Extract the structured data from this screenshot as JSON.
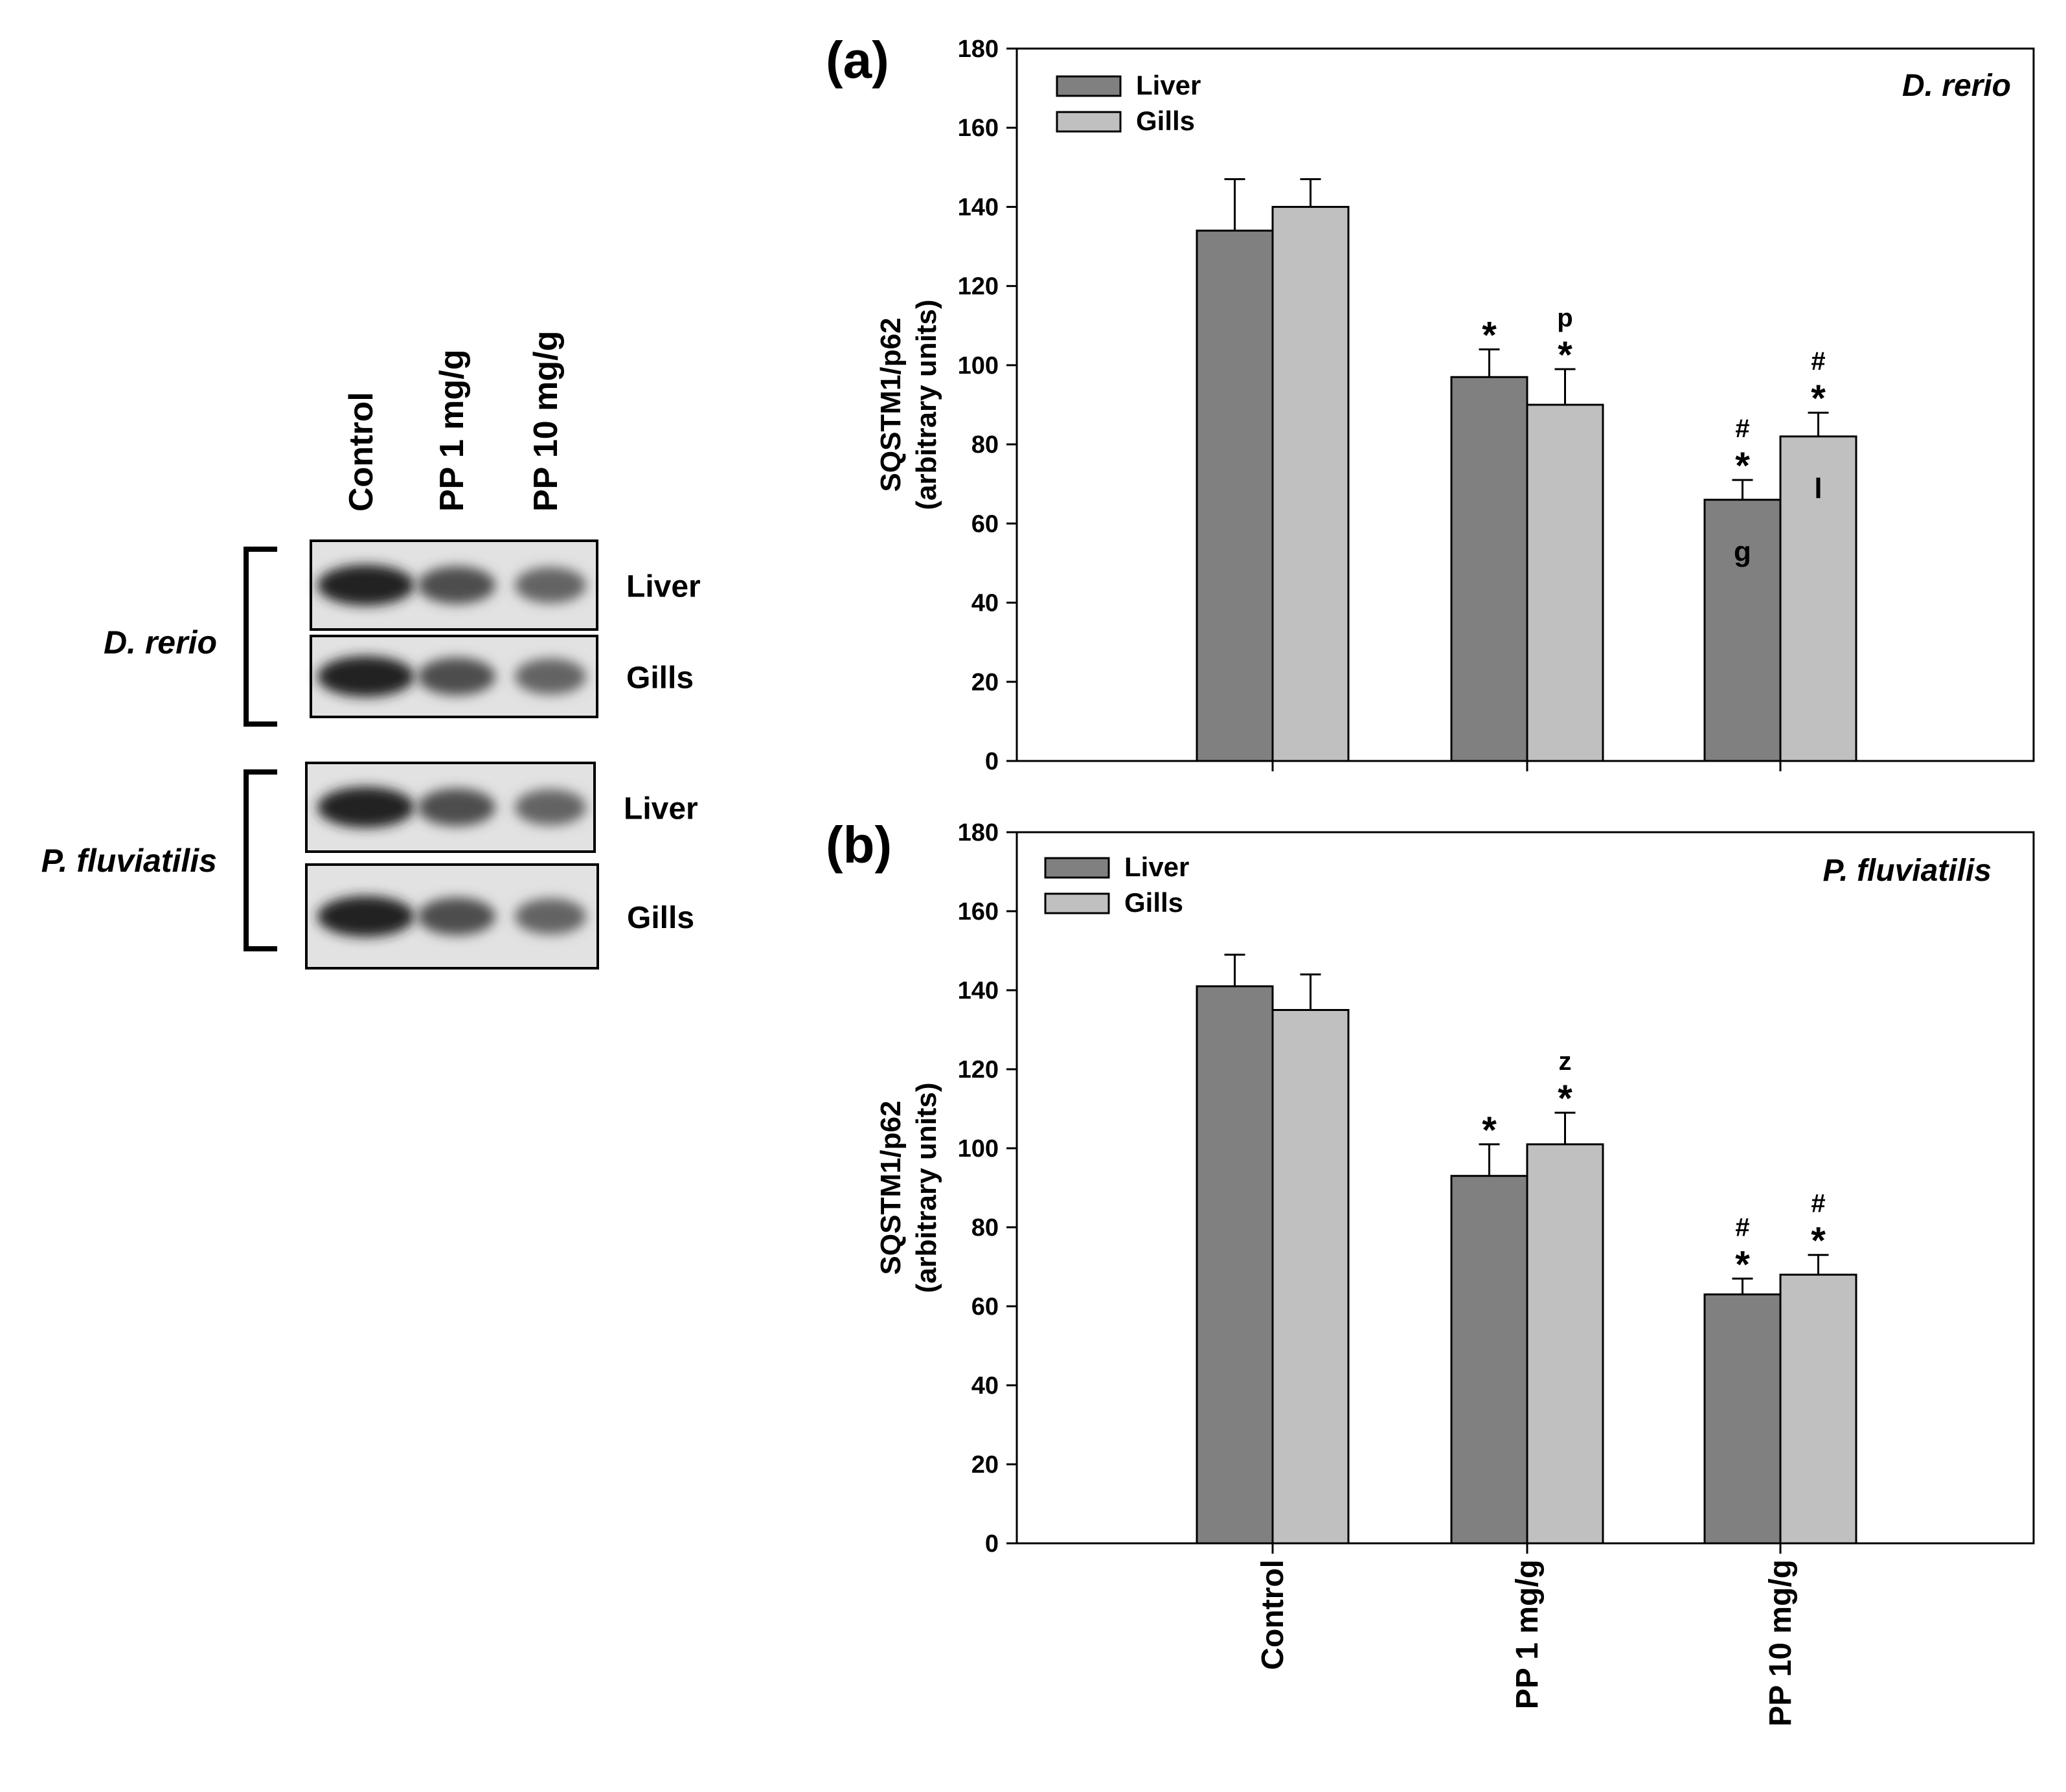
{
  "blot": {
    "lanes": [
      "Control",
      "PP 1 mg/g",
      "PP 10 mg/g"
    ],
    "groups": [
      {
        "species": "D. rerio",
        "tissues": [
          "Liver",
          "Gills"
        ]
      },
      {
        "species": "P. fluviatilis",
        "tissues": [
          "Liver",
          "Gills"
        ]
      }
    ]
  },
  "chart_data": [
    {
      "type": "bar",
      "panel_label": "(a)",
      "species": "D. rerio",
      "ylabel_line1": "SQSTM1/p62",
      "ylabel_line2": "(arbitrary units)",
      "ylim": [
        0,
        180
      ],
      "yticks": [
        0,
        20,
        40,
        60,
        80,
        100,
        120,
        140,
        160,
        180
      ],
      "categories": [
        "Control",
        "PP 1 mg/g",
        "PP 10 mg/g"
      ],
      "legend_position": "top-left",
      "series": [
        {
          "name": "Liver",
          "color": "#808080",
          "values": [
            134,
            97,
            66
          ],
          "errors": [
            13,
            7,
            5
          ],
          "annotations": [
            [],
            [
              "*"
            ],
            [
              "*",
              "#"
            ]
          ],
          "inner_labels": [
            "",
            "",
            "g"
          ]
        },
        {
          "name": "Gills",
          "color": "#c0c0c0",
          "values": [
            140,
            90,
            82
          ],
          "errors": [
            7,
            9,
            6
          ],
          "annotations": [
            [],
            [
              "*",
              "p"
            ],
            [
              "*",
              "#"
            ]
          ],
          "inner_labels": [
            "",
            "",
            "l"
          ]
        }
      ]
    },
    {
      "type": "bar",
      "panel_label": "(b)",
      "species": "P. fluviatilis",
      "ylabel_line1": "SQSTM1/p62",
      "ylabel_line2": "(arbitrary units)",
      "ylim": [
        0,
        180
      ],
      "yticks": [
        0,
        20,
        40,
        60,
        80,
        100,
        120,
        140,
        160,
        180
      ],
      "categories": [
        "Control",
        "PP 1 mg/g",
        "PP 10 mg/g"
      ],
      "legend_position": "top-left",
      "series": [
        {
          "name": "Liver",
          "color": "#808080",
          "values": [
            141,
            93,
            63
          ],
          "errors": [
            8,
            8,
            4
          ],
          "annotations": [
            [],
            [
              "*"
            ],
            [
              "*",
              "#"
            ]
          ],
          "inner_labels": [
            "",
            "",
            ""
          ]
        },
        {
          "name": "Gills",
          "color": "#c0c0c0",
          "values": [
            135,
            101,
            68
          ],
          "errors": [
            9,
            8,
            5
          ],
          "annotations": [
            [],
            [
              "*",
              "z"
            ],
            [
              "*",
              "#"
            ]
          ],
          "inner_labels": [
            "",
            "",
            ""
          ]
        }
      ]
    }
  ]
}
